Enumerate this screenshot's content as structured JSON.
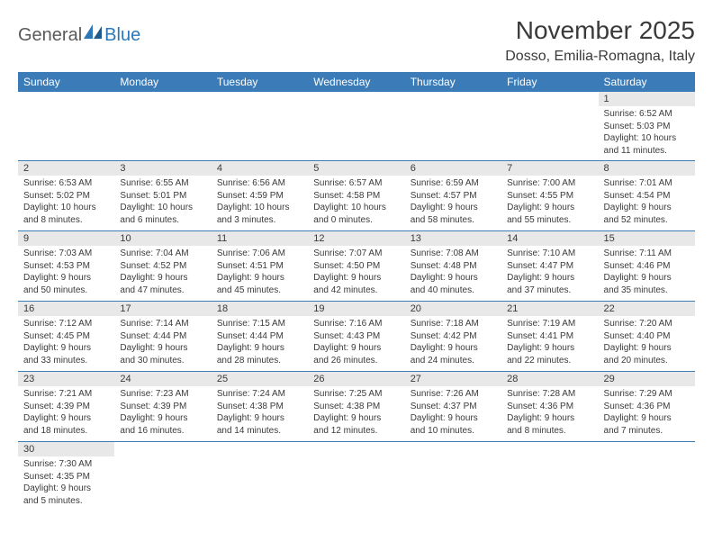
{
  "logo": {
    "part1": "General",
    "part2": "Blue"
  },
  "title": "November 2025",
  "location": "Dosso, Emilia-Romagna, Italy",
  "colors": {
    "header_bg": "#3b7cb8",
    "daynum_bg": "#e8e8e8",
    "rule": "#3b7cb8",
    "text": "#3a3a3a",
    "logo_gray": "#5a5a5a",
    "logo_blue": "#2c77b8"
  },
  "daynames": [
    "Sunday",
    "Monday",
    "Tuesday",
    "Wednesday",
    "Thursday",
    "Friday",
    "Saturday"
  ],
  "weeks": [
    [
      {
        "n": "",
        "l1": "",
        "l2": "",
        "l3": "",
        "l4": "",
        "empty": true
      },
      {
        "n": "",
        "l1": "",
        "l2": "",
        "l3": "",
        "l4": "",
        "empty": true
      },
      {
        "n": "",
        "l1": "",
        "l2": "",
        "l3": "",
        "l4": "",
        "empty": true
      },
      {
        "n": "",
        "l1": "",
        "l2": "",
        "l3": "",
        "l4": "",
        "empty": true
      },
      {
        "n": "",
        "l1": "",
        "l2": "",
        "l3": "",
        "l4": "",
        "empty": true
      },
      {
        "n": "",
        "l1": "",
        "l2": "",
        "l3": "",
        "l4": "",
        "empty": true
      },
      {
        "n": "1",
        "l1": "Sunrise: 6:52 AM",
        "l2": "Sunset: 5:03 PM",
        "l3": "Daylight: 10 hours",
        "l4": "and 11 minutes."
      }
    ],
    [
      {
        "n": "2",
        "l1": "Sunrise: 6:53 AM",
        "l2": "Sunset: 5:02 PM",
        "l3": "Daylight: 10 hours",
        "l4": "and 8 minutes."
      },
      {
        "n": "3",
        "l1": "Sunrise: 6:55 AM",
        "l2": "Sunset: 5:01 PM",
        "l3": "Daylight: 10 hours",
        "l4": "and 6 minutes."
      },
      {
        "n": "4",
        "l1": "Sunrise: 6:56 AM",
        "l2": "Sunset: 4:59 PM",
        "l3": "Daylight: 10 hours",
        "l4": "and 3 minutes."
      },
      {
        "n": "5",
        "l1": "Sunrise: 6:57 AM",
        "l2": "Sunset: 4:58 PM",
        "l3": "Daylight: 10 hours",
        "l4": "and 0 minutes."
      },
      {
        "n": "6",
        "l1": "Sunrise: 6:59 AM",
        "l2": "Sunset: 4:57 PM",
        "l3": "Daylight: 9 hours",
        "l4": "and 58 minutes."
      },
      {
        "n": "7",
        "l1": "Sunrise: 7:00 AM",
        "l2": "Sunset: 4:55 PM",
        "l3": "Daylight: 9 hours",
        "l4": "and 55 minutes."
      },
      {
        "n": "8",
        "l1": "Sunrise: 7:01 AM",
        "l2": "Sunset: 4:54 PM",
        "l3": "Daylight: 9 hours",
        "l4": "and 52 minutes."
      }
    ],
    [
      {
        "n": "9",
        "l1": "Sunrise: 7:03 AM",
        "l2": "Sunset: 4:53 PM",
        "l3": "Daylight: 9 hours",
        "l4": "and 50 minutes."
      },
      {
        "n": "10",
        "l1": "Sunrise: 7:04 AM",
        "l2": "Sunset: 4:52 PM",
        "l3": "Daylight: 9 hours",
        "l4": "and 47 minutes."
      },
      {
        "n": "11",
        "l1": "Sunrise: 7:06 AM",
        "l2": "Sunset: 4:51 PM",
        "l3": "Daylight: 9 hours",
        "l4": "and 45 minutes."
      },
      {
        "n": "12",
        "l1": "Sunrise: 7:07 AM",
        "l2": "Sunset: 4:50 PM",
        "l3": "Daylight: 9 hours",
        "l4": "and 42 minutes."
      },
      {
        "n": "13",
        "l1": "Sunrise: 7:08 AM",
        "l2": "Sunset: 4:48 PM",
        "l3": "Daylight: 9 hours",
        "l4": "and 40 minutes."
      },
      {
        "n": "14",
        "l1": "Sunrise: 7:10 AM",
        "l2": "Sunset: 4:47 PM",
        "l3": "Daylight: 9 hours",
        "l4": "and 37 minutes."
      },
      {
        "n": "15",
        "l1": "Sunrise: 7:11 AM",
        "l2": "Sunset: 4:46 PM",
        "l3": "Daylight: 9 hours",
        "l4": "and 35 minutes."
      }
    ],
    [
      {
        "n": "16",
        "l1": "Sunrise: 7:12 AM",
        "l2": "Sunset: 4:45 PM",
        "l3": "Daylight: 9 hours",
        "l4": "and 33 minutes."
      },
      {
        "n": "17",
        "l1": "Sunrise: 7:14 AM",
        "l2": "Sunset: 4:44 PM",
        "l3": "Daylight: 9 hours",
        "l4": "and 30 minutes."
      },
      {
        "n": "18",
        "l1": "Sunrise: 7:15 AM",
        "l2": "Sunset: 4:44 PM",
        "l3": "Daylight: 9 hours",
        "l4": "and 28 minutes."
      },
      {
        "n": "19",
        "l1": "Sunrise: 7:16 AM",
        "l2": "Sunset: 4:43 PM",
        "l3": "Daylight: 9 hours",
        "l4": "and 26 minutes."
      },
      {
        "n": "20",
        "l1": "Sunrise: 7:18 AM",
        "l2": "Sunset: 4:42 PM",
        "l3": "Daylight: 9 hours",
        "l4": "and 24 minutes."
      },
      {
        "n": "21",
        "l1": "Sunrise: 7:19 AM",
        "l2": "Sunset: 4:41 PM",
        "l3": "Daylight: 9 hours",
        "l4": "and 22 minutes."
      },
      {
        "n": "22",
        "l1": "Sunrise: 7:20 AM",
        "l2": "Sunset: 4:40 PM",
        "l3": "Daylight: 9 hours",
        "l4": "and 20 minutes."
      }
    ],
    [
      {
        "n": "23",
        "l1": "Sunrise: 7:21 AM",
        "l2": "Sunset: 4:39 PM",
        "l3": "Daylight: 9 hours",
        "l4": "and 18 minutes."
      },
      {
        "n": "24",
        "l1": "Sunrise: 7:23 AM",
        "l2": "Sunset: 4:39 PM",
        "l3": "Daylight: 9 hours",
        "l4": "and 16 minutes."
      },
      {
        "n": "25",
        "l1": "Sunrise: 7:24 AM",
        "l2": "Sunset: 4:38 PM",
        "l3": "Daylight: 9 hours",
        "l4": "and 14 minutes."
      },
      {
        "n": "26",
        "l1": "Sunrise: 7:25 AM",
        "l2": "Sunset: 4:38 PM",
        "l3": "Daylight: 9 hours",
        "l4": "and 12 minutes."
      },
      {
        "n": "27",
        "l1": "Sunrise: 7:26 AM",
        "l2": "Sunset: 4:37 PM",
        "l3": "Daylight: 9 hours",
        "l4": "and 10 minutes."
      },
      {
        "n": "28",
        "l1": "Sunrise: 7:28 AM",
        "l2": "Sunset: 4:36 PM",
        "l3": "Daylight: 9 hours",
        "l4": "and 8 minutes."
      },
      {
        "n": "29",
        "l1": "Sunrise: 7:29 AM",
        "l2": "Sunset: 4:36 PM",
        "l3": "Daylight: 9 hours",
        "l4": "and 7 minutes."
      }
    ],
    [
      {
        "n": "30",
        "l1": "Sunrise: 7:30 AM",
        "l2": "Sunset: 4:35 PM",
        "l3": "Daylight: 9 hours",
        "l4": "and 5 minutes."
      },
      {
        "n": "",
        "l1": "",
        "l2": "",
        "l3": "",
        "l4": "",
        "empty": true
      },
      {
        "n": "",
        "l1": "",
        "l2": "",
        "l3": "",
        "l4": "",
        "empty": true
      },
      {
        "n": "",
        "l1": "",
        "l2": "",
        "l3": "",
        "l4": "",
        "empty": true
      },
      {
        "n": "",
        "l1": "",
        "l2": "",
        "l3": "",
        "l4": "",
        "empty": true
      },
      {
        "n": "",
        "l1": "",
        "l2": "",
        "l3": "",
        "l4": "",
        "empty": true
      },
      {
        "n": "",
        "l1": "",
        "l2": "",
        "l3": "",
        "l4": "",
        "empty": true
      }
    ]
  ]
}
